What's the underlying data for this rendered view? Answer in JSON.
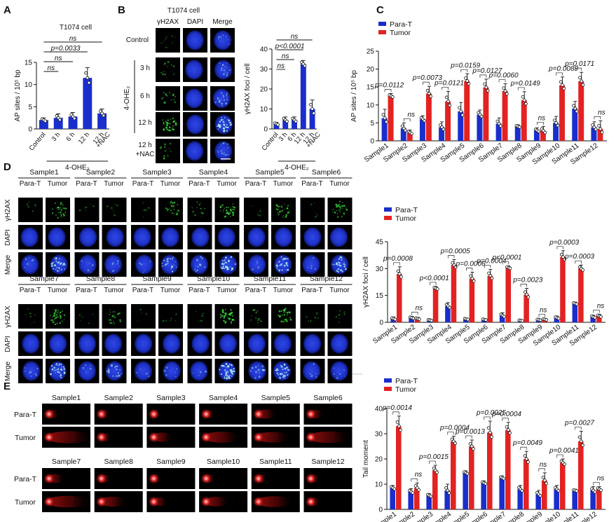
{
  "panel_labels": [
    "A",
    "B",
    "C",
    "D",
    "E"
  ],
  "cell_line": "T1074 cell",
  "treatment_group": "4-OHE₂",
  "common": {
    "para_t": "Para-T",
    "tumor": "Tumor",
    "ns": "ns"
  },
  "colors": {
    "para_t": "#1a2ecc",
    "tumor": "#e32222",
    "nucleus": "#1f33c9",
    "comet_head": "#ff3535",
    "comet_tail": "#a80f0f"
  },
  "samples": [
    "Sample1",
    "Sample2",
    "Sample3",
    "Sample4",
    "Sample5",
    "Sample6",
    "Sample7",
    "Sample8",
    "Sample9",
    "Sample10",
    "Sample11",
    "Sample12"
  ],
  "panelB_micro": {
    "cols": [
      "γH2AX",
      "DAPI",
      "Merge"
    ],
    "rows": [
      "Control",
      "3 h",
      "6 h",
      "12 h",
      "12 h\n+NAC"
    ]
  },
  "panelD_micro": {
    "rows": [
      "γH2AX",
      "DAPI",
      "Merge"
    ]
  },
  "panelE_micro": {
    "rows": [
      "Para-T",
      "Tumor"
    ]
  },
  "chart_data": [
    {
      "id": "A",
      "type": "bar",
      "title": "T1074 cell",
      "ylabel": "AP sites / 10⁵ bp",
      "ylim": [
        0,
        15
      ],
      "yticks": [
        0,
        5,
        10,
        15
      ],
      "categories": [
        "Control",
        "3 h",
        "6 h",
        "12 h",
        "12 h +NAC"
      ],
      "values": [
        2.0,
        2.5,
        2.8,
        11.5,
        3.5
      ],
      "errors": [
        0.5,
        0.9,
        0.9,
        2.3,
        1.0
      ],
      "group_label": "4-OHE₂",
      "comparisons": [
        {
          "label": "ns",
          "from": 0,
          "to": 4
        },
        {
          "label": "p=0.0033",
          "from": 0,
          "to": 3
        },
        {
          "label": "ns",
          "from": 0,
          "to": 2
        },
        {
          "label": "ns",
          "from": 0,
          "to": 1
        }
      ]
    },
    {
      "id": "B",
      "type": "bar",
      "title": "",
      "ylabel": "γH2AX foci / cell",
      "ylim": [
        0,
        40
      ],
      "yticks": [
        0,
        10,
        20,
        30,
        40
      ],
      "categories": [
        "Control",
        "3 h",
        "6 h",
        "12 h",
        "12 h +NAC"
      ],
      "values": [
        2.5,
        4.5,
        4.5,
        32.5,
        10.0
      ],
      "errors": [
        0.8,
        1.5,
        1.5,
        1.8,
        4.5
      ],
      "group_label": "4-OHE₂",
      "comparisons": [
        {
          "label": "ns",
          "from": 0,
          "to": 4
        },
        {
          "label": "p<0.0001",
          "from": 0,
          "to": 3
        },
        {
          "label": "ns",
          "from": 0,
          "to": 2
        },
        {
          "label": "ns",
          "from": 0,
          "to": 1
        }
      ]
    },
    {
      "id": "C",
      "type": "bar",
      "ylabel": "AP sites / 10⁵ bp",
      "ylim": [
        0,
        25
      ],
      "yticks": [
        0,
        5,
        10,
        15,
        20,
        25
      ],
      "legend": [
        "Para-T",
        "Tumor"
      ],
      "series": [
        {
          "name": "Para-T",
          "values": [
            6.3,
            3.5,
            6.0,
            3.8,
            8.2,
            7.3,
            4.8,
            4.0,
            2.9,
            5.0,
            9.0,
            3.8
          ],
          "errors": [
            2.5,
            1.5,
            1.0,
            1.5,
            2.5,
            1.3,
            1.6,
            0.5,
            0.7,
            1.8,
            2.0,
            1.5
          ]
        },
        {
          "name": "Tumor",
          "values": [
            12.5,
            2.3,
            13.2,
            11.0,
            16.7,
            14.9,
            13.9,
            11.3,
            2.8,
            15.5,
            16.6,
            3.3
          ],
          "errors": [
            0.7,
            0.7,
            2.0,
            2.8,
            2.0,
            2.3,
            2.0,
            2.4,
            1.2,
            2.3,
            2.5,
            2.3
          ]
        }
      ],
      "p_labels": [
        "p=0.0112",
        "ns",
        "p=0.0073",
        "p=0.0121",
        "p=0.0159",
        "p=0.0127",
        "p=0.0060",
        "p=0.0149",
        "ns",
        "p=0.0089",
        "p=0.0171",
        "ns"
      ]
    },
    {
      "id": "D",
      "type": "bar",
      "ylabel": "γH2AX foci / cell",
      "ylim": [
        0,
        45
      ],
      "yticks": [
        0,
        15,
        30,
        45
      ],
      "legend": [
        "Para-T",
        "Tumor"
      ],
      "series": [
        {
          "name": "Para-T",
          "values": [
            2.0,
            2.5,
            1.2,
            9.0,
            1.8,
            1.5,
            3.8,
            1.0,
            1.4,
            2.5,
            10.5,
            3.0
          ],
          "errors": [
            1.0,
            0.8,
            0.5,
            2.0,
            0.6,
            0.5,
            1.5,
            0.4,
            0.5,
            1.0,
            0.8,
            1.0
          ]
        },
        {
          "name": "Tumor",
          "values": [
            27.0,
            2.0,
            19.0,
            32.0,
            24.5,
            26.0,
            30.5,
            15.5,
            1.6,
            36.5,
            30.0,
            3.5
          ],
          "errors": [
            4.0,
            0.8,
            1.0,
            3.0,
            3.5,
            3.5,
            1.0,
            3.5,
            0.5,
            3.5,
            2.0,
            1.0
          ]
        }
      ],
      "p_labels": [
        "p=0.0008",
        "ns",
        "p<0.0001",
        "p=0.0005",
        "p=0.0006",
        "p=0.0004",
        "p<0.0001",
        "p=0.0023",
        "ns",
        "p=0.0003",
        "p=0.0003",
        "ns"
      ]
    },
    {
      "id": "E",
      "type": "bar",
      "ylabel": "Tail moment",
      "ylim": [
        0,
        40
      ],
      "yticks": [
        0,
        10,
        20,
        30,
        40
      ],
      "legend": [
        "Para-T",
        "Tumor"
      ],
      "series": [
        {
          "name": "Para-T",
          "values": [
            8.5,
            7.0,
            5.5,
            7.5,
            14.5,
            10.5,
            12.5,
            8.0,
            6.0,
            8.0,
            7.5,
            7.5
          ],
          "errors": [
            1.0,
            1.2,
            0.8,
            2.5,
            0.8,
            0.8,
            0.8,
            1.5,
            1.5,
            1.5,
            0.5,
            1.5
          ]
        },
        {
          "name": "Tumor",
          "values": [
            33.0,
            8.5,
            15.5,
            27.0,
            25.0,
            30.5,
            31.5,
            20.0,
            11.5,
            18.5,
            27.0,
            8.0
          ],
          "errors": [
            4.0,
            2.0,
            2.0,
            2.0,
            2.5,
            4.5,
            3.0,
            3.0,
            3.0,
            1.5,
            4.0,
            1.0
          ]
        }
      ],
      "p_labels": [
        "p=0.0014",
        "ns",
        "p=0.0015",
        "p=0.0004",
        "p=0.0013",
        "p=0.0025",
        "p=0.0004",
        "p=0.0049",
        "ns",
        "p=0.0041",
        "p=0.0027",
        "ns"
      ]
    }
  ]
}
